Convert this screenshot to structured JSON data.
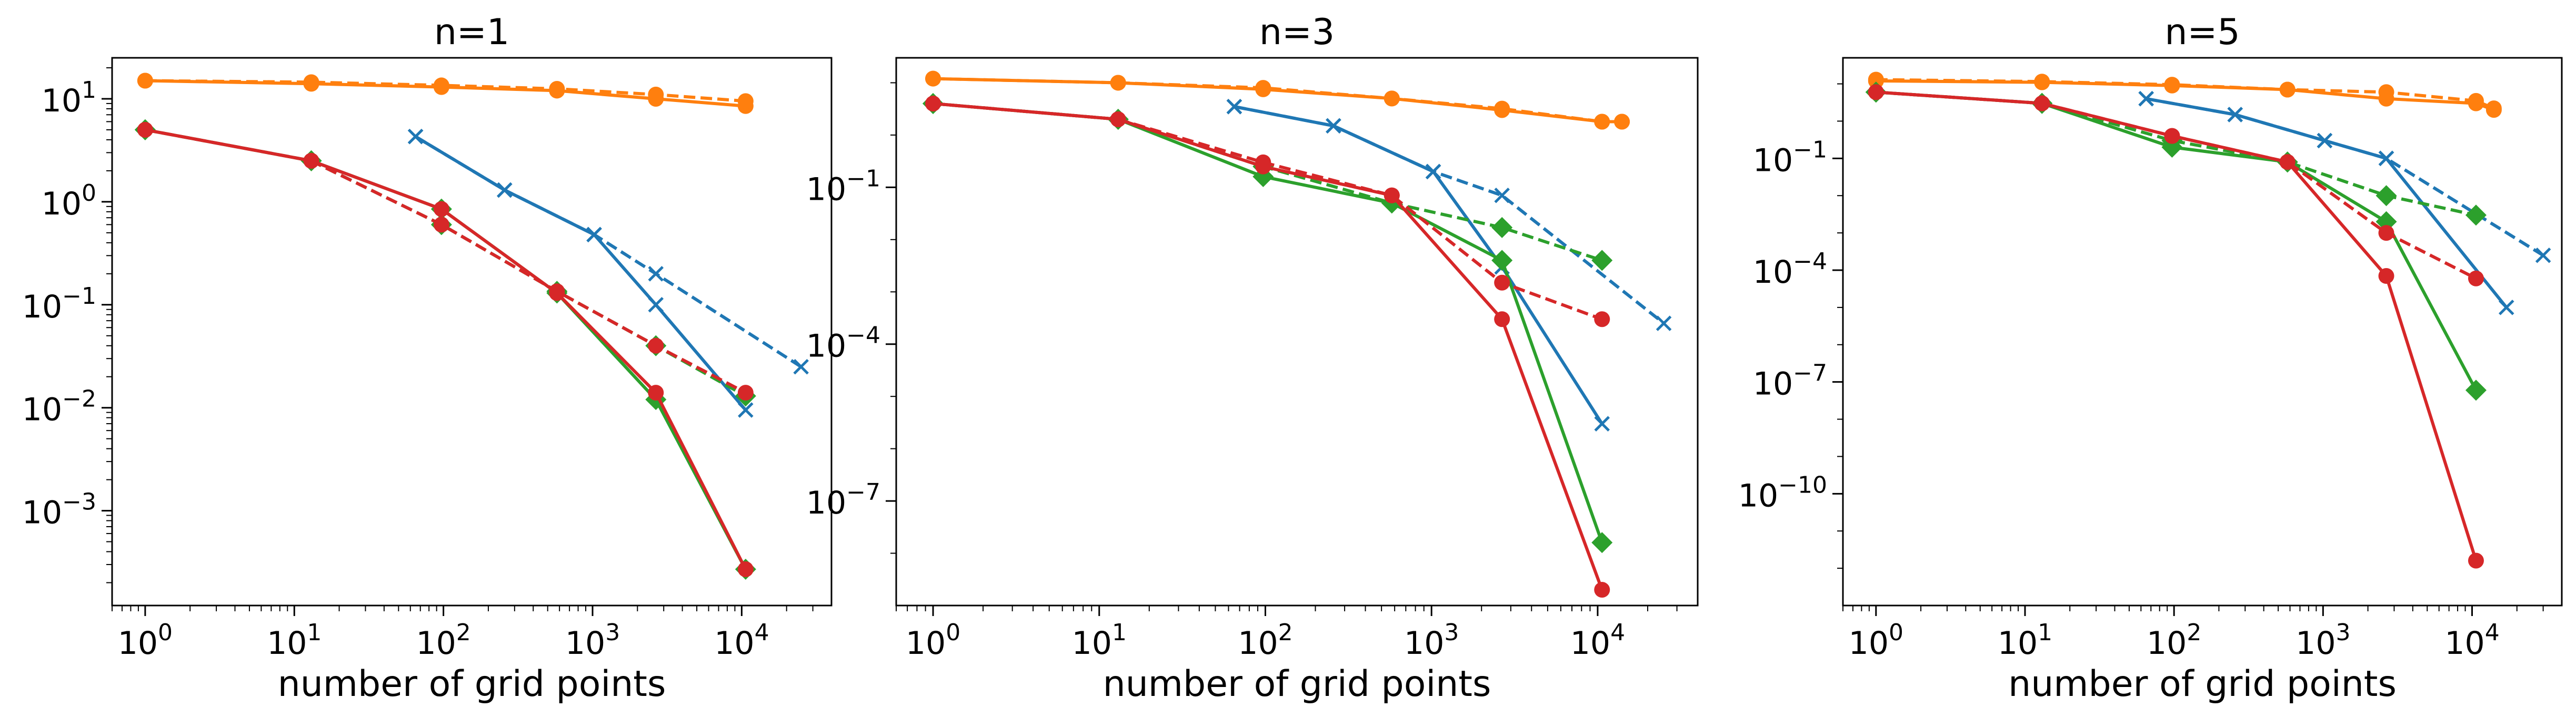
{
  "colors": {
    "blue": "#1f77b4",
    "orange": "#ff7f0e",
    "green": "#2ca02c",
    "red": "#d62728"
  },
  "chart_data": [
    {
      "type": "line",
      "title": "n=1",
      "xlabel": "number of grid points",
      "ylabel": "",
      "xscale": "log",
      "yscale": "log",
      "xlim": [
        0.6,
        40000
      ],
      "ylim": [
        0.00012,
        25
      ],
      "xticks": [
        1,
        10,
        100,
        1000,
        10000
      ],
      "yticks": [
        0.001,
        0.01,
        0.1,
        1,
        10
      ],
      "grid": false,
      "series": [
        {
          "color": "#ff7f0e",
          "style": "solid",
          "marker": "circle",
          "x": [
            1,
            13,
            97,
            577,
            2657,
            10625
          ],
          "y": [
            15,
            14,
            13,
            12,
            10,
            8.5
          ]
        },
        {
          "color": "#ff7f0e",
          "style": "dashed",
          "marker": "circle",
          "x": [
            1,
            13,
            97,
            577,
            2657,
            10625
          ],
          "y": [
            15,
            14.5,
            13.5,
            12.5,
            11,
            9.5
          ]
        },
        {
          "color": "#1f77b4",
          "style": "solid",
          "marker": "x",
          "x": [
            65,
            257,
            1025,
            2657,
            10625
          ],
          "y": [
            4.3,
            1.3,
            0.48,
            0.1,
            0.0095
          ]
        },
        {
          "color": "#1f77b4",
          "style": "dashed",
          "marker": "x",
          "x": [
            65,
            257,
            1025,
            2657,
            25000
          ],
          "y": [
            4.3,
            1.3,
            0.48,
            0.2,
            0.025
          ]
        },
        {
          "color": "#2ca02c",
          "style": "solid",
          "marker": "diamond",
          "x": [
            1,
            13,
            97,
            577,
            2657,
            10625
          ],
          "y": [
            5,
            2.5,
            0.85,
            0.13,
            0.012,
            0.00027
          ]
        },
        {
          "color": "#2ca02c",
          "style": "dashed",
          "marker": "diamond",
          "x": [
            1,
            13,
            97,
            577,
            2657,
            10625
          ],
          "y": [
            5,
            2.5,
            0.6,
            0.135,
            0.04,
            0.013
          ]
        },
        {
          "color": "#d62728",
          "style": "solid",
          "marker": "circle",
          "x": [
            1,
            13,
            97,
            577,
            2657,
            10625
          ],
          "y": [
            5,
            2.5,
            0.85,
            0.13,
            0.014,
            0.00027
          ]
        },
        {
          "color": "#d62728",
          "style": "dashed",
          "marker": "circle",
          "x": [
            1,
            13,
            97,
            577,
            2657,
            10625
          ],
          "y": [
            5,
            2.5,
            0.6,
            0.135,
            0.04,
            0.014
          ]
        }
      ]
    },
    {
      "type": "line",
      "title": "n=3",
      "xlabel": "number of grid points",
      "ylabel": "",
      "xscale": "log",
      "yscale": "log",
      "xlim": [
        0.6,
        40000
      ],
      "ylim": [
        1e-09,
        30
      ],
      "xticks": [
        1,
        10,
        100,
        1000,
        10000
      ],
      "yticks": [
        1e-07,
        0.0001,
        0.1
      ],
      "grid": false,
      "series": [
        {
          "color": "#ff7f0e",
          "style": "solid",
          "marker": "circle",
          "x": [
            1,
            13,
            97,
            577,
            2657,
            10625,
            14000
          ],
          "y": [
            12,
            10,
            7.5,
            5,
            3,
            1.8,
            1.8
          ]
        },
        {
          "color": "#ff7f0e",
          "style": "dashed",
          "marker": "circle",
          "x": [
            1,
            13,
            97,
            577,
            2657,
            10625,
            14000
          ],
          "y": [
            12,
            10,
            8,
            5,
            3.2,
            1.8,
            1.8
          ]
        },
        {
          "color": "#1f77b4",
          "style": "solid",
          "marker": "x",
          "x": [
            65,
            257,
            1025,
            2657,
            10625
          ],
          "y": [
            3.5,
            1.5,
            0.2,
            0.003,
            3e-06
          ]
        },
        {
          "color": "#1f77b4",
          "style": "dashed",
          "marker": "x",
          "x": [
            65,
            257,
            1025,
            2657,
            25000
          ],
          "y": [
            3.5,
            1.5,
            0.2,
            0.07,
            0.00025
          ]
        },
        {
          "color": "#2ca02c",
          "style": "solid",
          "marker": "diamond",
          "x": [
            1,
            13,
            97,
            577,
            2657,
            10625
          ],
          "y": [
            4,
            2,
            0.16,
            0.05,
            0.004,
            1.6e-08
          ]
        },
        {
          "color": "#2ca02c",
          "style": "dashed",
          "marker": "diamond",
          "x": [
            1,
            13,
            97,
            577,
            2657,
            10625
          ],
          "y": [
            4,
            2,
            0.25,
            0.05,
            0.017,
            0.004
          ]
        },
        {
          "color": "#d62728",
          "style": "solid",
          "marker": "circle",
          "x": [
            1,
            13,
            97,
            577,
            2657,
            10625
          ],
          "y": [
            4,
            2,
            0.25,
            0.07,
            0.0003,
            2e-09
          ]
        },
        {
          "color": "#d62728",
          "style": "dashed",
          "marker": "circle",
          "x": [
            1,
            13,
            97,
            577,
            2657,
            10625
          ],
          "y": [
            4,
            2,
            0.3,
            0.07,
            0.0015,
            0.0003
          ]
        }
      ]
    },
    {
      "type": "line",
      "title": "n=5",
      "xlabel": "number of grid points",
      "ylabel": "",
      "xscale": "log",
      "yscale": "log",
      "xlim": [
        0.6,
        40000
      ],
      "ylim": [
        1e-13,
        50
      ],
      "xticks": [
        1,
        10,
        100,
        1000,
        10000
      ],
      "yticks": [
        1e-10,
        1e-07,
        0.0001,
        0.1
      ],
      "grid": false,
      "series": [
        {
          "color": "#ff7f0e",
          "style": "solid",
          "marker": "circle",
          "x": [
            1,
            13,
            97,
            577,
            2657,
            10625,
            14000
          ],
          "y": [
            12,
            11,
            9,
            7,
            4,
            3,
            2
          ]
        },
        {
          "color": "#ff7f0e",
          "style": "dashed",
          "marker": "circle",
          "x": [
            1,
            13,
            97,
            577,
            2657,
            10625,
            14000
          ],
          "y": [
            13,
            11.5,
            9.5,
            7,
            6,
            3.5,
            2.2
          ]
        },
        {
          "color": "#1f77b4",
          "style": "solid",
          "marker": "x",
          "x": [
            65,
            257,
            1025,
            2657,
            17000
          ],
          "y": [
            4,
            1.5,
            0.3,
            0.1,
            1e-05
          ]
        },
        {
          "color": "#1f77b4",
          "style": "dashed",
          "marker": "x",
          "x": [
            65,
            257,
            1025,
            2657,
            30000
          ],
          "y": [
            4,
            1.5,
            0.3,
            0.1,
            0.00025
          ]
        },
        {
          "color": "#2ca02c",
          "style": "solid",
          "marker": "diamond",
          "x": [
            1,
            13,
            97,
            577,
            2657,
            10625
          ],
          "y": [
            6,
            3,
            0.2,
            0.08,
            0.002,
            6e-08
          ]
        },
        {
          "color": "#2ca02c",
          "style": "dashed",
          "marker": "diamond",
          "x": [
            1,
            13,
            97,
            577,
            2657,
            10625
          ],
          "y": [
            6,
            3,
            0.3,
            0.08,
            0.01,
            0.003
          ]
        },
        {
          "color": "#d62728",
          "style": "solid",
          "marker": "circle",
          "x": [
            1,
            13,
            97,
            577,
            2657,
            10625
          ],
          "y": [
            6,
            3,
            0.4,
            0.08,
            7e-05,
            1.6e-12
          ]
        },
        {
          "color": "#d62728",
          "style": "dashed",
          "marker": "circle",
          "x": [
            1,
            13,
            97,
            577,
            2657,
            10625
          ],
          "y": [
            6,
            3,
            0.4,
            0.08,
            0.001,
            6e-05
          ]
        }
      ]
    }
  ]
}
